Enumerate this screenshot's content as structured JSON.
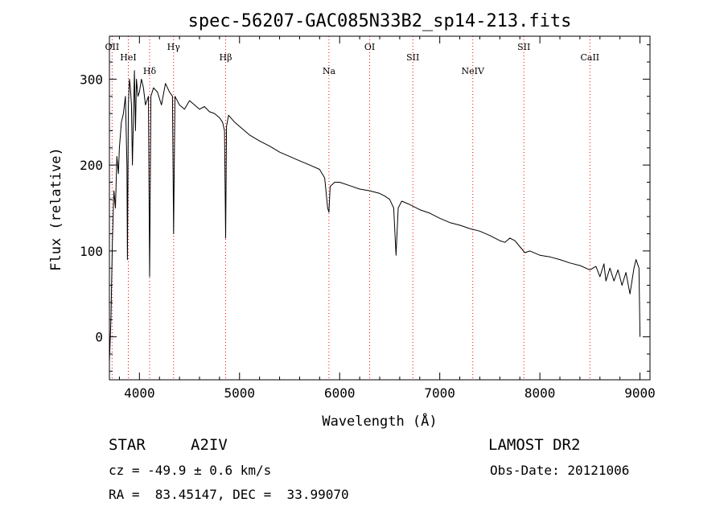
{
  "chart_data": {
    "type": "line",
    "title": "spec-56207-GAC085N33B2_sp14-213.fits",
    "xlabel": "Wavelength (Å)",
    "ylabel": "Flux (relative)",
    "xlim": [
      3700,
      9100
    ],
    "ylim": [
      -50,
      350
    ],
    "xticks": [
      4000,
      5000,
      6000,
      7000,
      8000,
      9000
    ],
    "yticks": [
      0,
      100,
      200,
      300
    ],
    "grid": false,
    "line_color": "#000000",
    "marker_color": "#ff0000",
    "series": [
      {
        "x": [
          3700,
          3715,
          3730,
          3745,
          3760,
          3775,
          3790,
          3800,
          3820,
          3840,
          3860,
          3875,
          3880,
          3890,
          3900,
          3910,
          3920,
          3930,
          3950,
          3960,
          3970,
          3985,
          4000,
          4020,
          4040,
          4060,
          4090,
          4102,
          4115,
          4140,
          4180,
          4220,
          4260,
          4300,
          4330,
          4341,
          4355,
          4400,
          4450,
          4500,
          4550,
          4600,
          4650,
          4700,
          4750,
          4800,
          4830,
          4850,
          4861,
          4870,
          4890,
          4950,
          5000,
          5100,
          5200,
          5300,
          5400,
          5500,
          5600,
          5700,
          5800,
          5850,
          5880,
          5893,
          5905,
          5950,
          6000,
          6100,
          6200,
          6300,
          6400,
          6450,
          6500,
          6540,
          6563,
          6585,
          6620,
          6700,
          6800,
          6900,
          7000,
          7100,
          7200,
          7300,
          7400,
          7500,
          7600,
          7650,
          7700,
          7750,
          7800,
          7850,
          7900,
          8000,
          8100,
          8200,
          8300,
          8400,
          8500,
          8560,
          8600,
          8640,
          8660,
          8700,
          8740,
          8780,
          8820,
          8860,
          8900,
          8940,
          8960,
          8990,
          9000
        ],
        "y": [
          -30,
          20,
          110,
          170,
          150,
          210,
          190,
          220,
          250,
          260,
          280,
          200,
          90,
          270,
          300,
          290,
          270,
          200,
          310,
          240,
          300,
          280,
          285,
          300,
          290,
          270,
          280,
          70,
          280,
          290,
          285,
          270,
          295,
          285,
          280,
          120,
          280,
          270,
          265,
          275,
          270,
          265,
          268,
          262,
          260,
          255,
          250,
          240,
          115,
          245,
          258,
          250,
          245,
          235,
          228,
          222,
          215,
          210,
          205,
          200,
          195,
          185,
          150,
          145,
          175,
          180,
          180,
          176,
          172,
          170,
          167,
          164,
          160,
          150,
          95,
          150,
          158,
          154,
          148,
          144,
          138,
          133,
          130,
          126,
          123,
          118,
          112,
          110,
          115,
          112,
          105,
          98,
          100,
          95,
          93,
          90,
          86,
          83,
          78,
          82,
          70,
          85,
          65,
          80,
          65,
          78,
          60,
          75,
          50,
          80,
          90,
          80,
          0
        ]
      }
    ],
    "spectral_lines": [
      {
        "label": "OII",
        "x": 3727
      },
      {
        "label": "HeI",
        "x": 3889
      },
      {
        "label": "Hδ",
        "x": 4102
      },
      {
        "label": "Hγ",
        "x": 4341
      },
      {
        "label": "Hβ",
        "x": 4861
      },
      {
        "label": "Na",
        "x": 5893
      },
      {
        "label": "OI",
        "x": 6300
      },
      {
        "label": "SII",
        "x": 6731
      },
      {
        "label": "NeIV",
        "x": 7330
      },
      {
        "label": "SII",
        "x": 7840
      },
      {
        "label": "CaII",
        "x": 8500
      }
    ]
  },
  "info": {
    "object_type": "STAR",
    "subclass": "A2IV",
    "survey": "LAMOST DR2",
    "cz": "cz = -49.9 ± 0.6 km/s",
    "obs_date": "Obs-Date: 20121006",
    "coords": "RA =  83.45147, DEC =  33.99070"
  }
}
